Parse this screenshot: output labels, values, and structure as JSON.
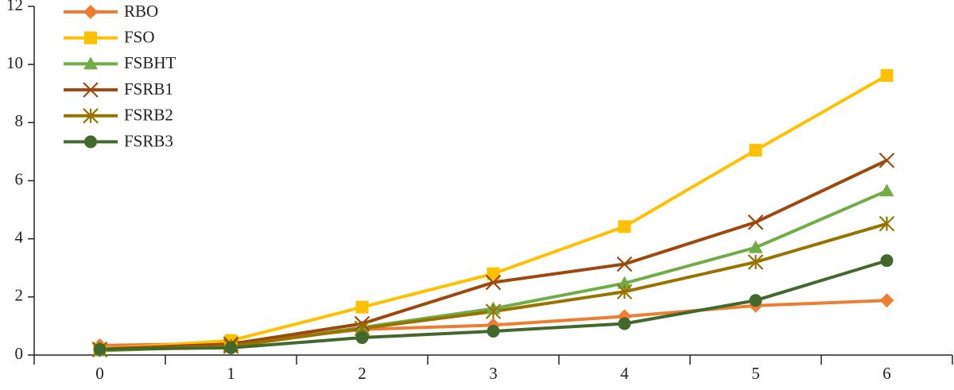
{
  "chart_data": {
    "type": "line",
    "categories": [
      "0",
      "1",
      "2",
      "3",
      "4",
      "5",
      "6"
    ],
    "series": [
      {
        "name": "RBO",
        "color": "#ed7d31",
        "marker": "diamond",
        "values": [
          0.33,
          0.4,
          0.88,
          1.03,
          1.33,
          1.7,
          1.88
        ]
      },
      {
        "name": "FSO",
        "color": "#ffc000",
        "marker": "square",
        "values": [
          0.2,
          0.5,
          1.65,
          2.8,
          4.42,
          7.05,
          9.62
        ]
      },
      {
        "name": "FSBHT",
        "color": "#70ad47",
        "marker": "triangle",
        "values": [
          0.15,
          0.3,
          0.95,
          1.6,
          2.47,
          3.7,
          5.65
        ]
      },
      {
        "name": "FSRB1",
        "color": "#9e480e",
        "marker": "x",
        "values": [
          0.2,
          0.38,
          1.08,
          2.5,
          3.13,
          4.57,
          6.7
        ]
      },
      {
        "name": "FSRB2",
        "color": "#997300",
        "marker": "asterisk",
        "values": [
          0.18,
          0.3,
          0.92,
          1.5,
          2.18,
          3.2,
          4.52
        ]
      },
      {
        "name": "FSRB3",
        "color": "#43682b",
        "marker": "circle",
        "values": [
          0.2,
          0.25,
          0.6,
          0.82,
          1.08,
          1.88,
          3.25
        ]
      }
    ],
    "ylim": [
      0,
      12
    ],
    "yticks": [
      0,
      2,
      4,
      6,
      8,
      10,
      12
    ],
    "grid": false,
    "legend": "top-left"
  }
}
